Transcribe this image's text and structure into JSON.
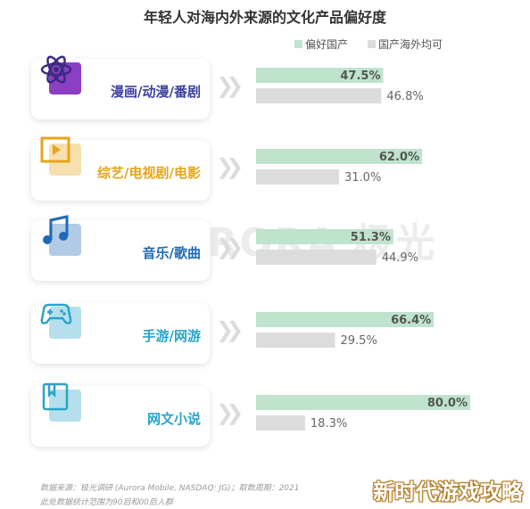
{
  "chart_data": {
    "type": "bar",
    "title": "年轻人对海内外来源的文化产品偏好度",
    "categories": [
      "漫画/动漫/番剧",
      "综艺/电视剧/电影",
      "音乐/歌曲",
      "手游/网游",
      "网文小说"
    ],
    "series": [
      {
        "name": "偏好国产",
        "values": [
          47.5,
          62.0,
          51.3,
          66.4,
          80.0
        ],
        "labels": [
          "47.5%",
          "62.0%",
          "51.3%",
          "66.4%",
          "80.0%"
        ]
      },
      {
        "name": "国产海外均可",
        "values": [
          46.8,
          31.0,
          44.9,
          29.5,
          18.3
        ],
        "labels": [
          "46.8%",
          "31.0%",
          "44.9%",
          "29.5%",
          "18.3%"
        ]
      }
    ],
    "ylim": [
      0,
      100
    ],
    "legend_position": "top-right",
    "grid": false
  },
  "colors": {
    "series1": "#bfe3cc",
    "series2": "#dcdcdc",
    "category_colors": [
      "#3b3fa0",
      "#e6a51a",
      "#1f69b8",
      "#2aa3c9",
      "#2aa3c9"
    ],
    "icon_shadow": "#8b3fc2"
  },
  "icons": [
    "atom-icon",
    "video-play-icon",
    "music-note-icon",
    "gamepad-icon",
    "book-icon"
  ],
  "watermark": "AURORA 极光",
  "chevron_glyph": "❯❯",
  "footnote": {
    "line1": "数据来源：极光调研 (Aurora Mobile, NASDAQ: JG)；取数周期：2021",
    "line2": "此处数据统计范围为90后和00后人群"
  },
  "badge": "新时代游戏攻略"
}
